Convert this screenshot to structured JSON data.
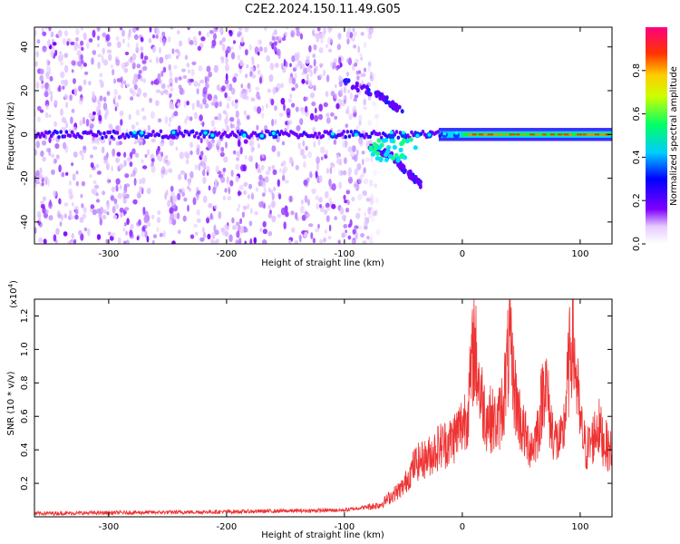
{
  "title": "C2E2.2024.150.11.49.G05",
  "charts": {
    "spectrogram": {
      "type": "heatmap",
      "xlabel": "Height of straight line (km)",
      "ylabel": "Frequency (Hz)",
      "xlim": [
        -363,
        127
      ],
      "ylim": [
        -50,
        49
      ],
      "x_ticks": [
        -300,
        -200,
        -100,
        0,
        100
      ],
      "y_ticks": [
        -40,
        -20,
        0,
        20,
        40
      ],
      "colorbar": {
        "label": "Normalized spectral amplitude",
        "range": [
          0.0,
          1.0
        ],
        "ticks": [
          "0.0",
          "0.2",
          "0.4",
          "0.6",
          "0.8"
        ]
      },
      "features": [
        {
          "description": "broadband noise",
          "x_range": [
            -363,
            -80
          ],
          "freq_range": [
            -50,
            49
          ]
        },
        {
          "description": "carrier line",
          "x_range": [
            -363,
            127
          ],
          "freq": 0
        },
        {
          "description": "upper tail",
          "x": [
            -100,
            -70,
            -50
          ],
          "freq": [
            24,
            18,
            10
          ]
        },
        {
          "description": "lower tail",
          "x": [
            -80,
            -60,
            -45,
            -35
          ],
          "freq": [
            -5,
            -10,
            -18,
            -23
          ]
        }
      ]
    },
    "snr": {
      "type": "line",
      "xlabel": "Height of straight line (km)",
      "ylabel": "SNR (10 * v/v)",
      "scale_label": "(x10",
      "scale_exp": "4",
      "scale_close": ")",
      "xlim": [
        -363,
        127
      ],
      "ylim": [
        0,
        1.3
      ],
      "x_ticks": [
        -300,
        -200,
        -100,
        0,
        100
      ],
      "y_ticks": [
        0.2,
        0.4,
        0.6,
        0.8,
        1.0,
        1.2
      ],
      "series_color": "#ee3333",
      "anchors": {
        "x": [
          -363,
          -200,
          -100,
          -70,
          -50,
          -40,
          -30,
          -20,
          -10,
          0,
          5,
          10,
          15,
          20,
          25,
          30,
          35,
          40,
          45,
          50,
          55,
          60,
          65,
          70,
          75,
          80,
          85,
          90,
          93,
          96,
          100,
          105,
          110,
          115,
          120,
          127
        ],
        "y": [
          0.02,
          0.03,
          0.04,
          0.07,
          0.18,
          0.32,
          0.35,
          0.42,
          0.45,
          0.55,
          0.65,
          1.05,
          0.75,
          0.6,
          0.58,
          0.55,
          0.7,
          1.02,
          0.72,
          0.55,
          0.45,
          0.42,
          0.55,
          0.85,
          0.55,
          0.45,
          0.45,
          0.85,
          1.1,
          0.9,
          0.55,
          0.4,
          0.45,
          0.55,
          0.45,
          0.38
        ]
      }
    }
  },
  "colors": {
    "colormap": [
      "#ffffff",
      "#8000ff",
      "#0000ff",
      "#00ffff",
      "#00ff00",
      "#ffff00",
      "#ff8000",
      "#ff0000",
      "#ff0080"
    ],
    "line": "#ee3333"
  }
}
